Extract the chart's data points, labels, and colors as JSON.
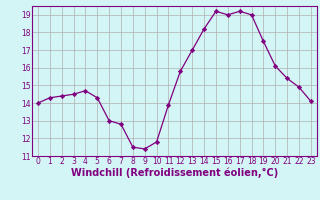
{
  "x": [
    0,
    1,
    2,
    3,
    4,
    5,
    6,
    7,
    8,
    9,
    10,
    11,
    12,
    13,
    14,
    15,
    16,
    17,
    18,
    19,
    20,
    21,
    22,
    23
  ],
  "y": [
    14.0,
    14.3,
    14.4,
    14.5,
    14.7,
    14.3,
    13.0,
    12.8,
    11.5,
    11.4,
    11.8,
    13.9,
    15.8,
    17.0,
    18.2,
    19.2,
    19.0,
    19.2,
    19.0,
    17.5,
    16.1,
    15.4,
    14.9,
    14.1
  ],
  "line_color": "#800080",
  "marker": "D",
  "marker_size": 2.2,
  "bg_color": "#d4f5f5",
  "grid_color": "#b0b0b0",
  "xlabel": "Windchill (Refroidissement éolien,°C)",
  "ylim": [
    11,
    19.5
  ],
  "xlim": [
    -0.5,
    23.5
  ],
  "yticks": [
    11,
    12,
    13,
    14,
    15,
    16,
    17,
    18,
    19
  ],
  "xticks": [
    0,
    1,
    2,
    3,
    4,
    5,
    6,
    7,
    8,
    9,
    10,
    11,
    12,
    13,
    14,
    15,
    16,
    17,
    18,
    19,
    20,
    21,
    22,
    23
  ],
  "tick_label_size": 5.5,
  "xlabel_size": 7.0,
  "label_color": "#800080",
  "spine_color": "#800080",
  "linewidth": 0.9
}
